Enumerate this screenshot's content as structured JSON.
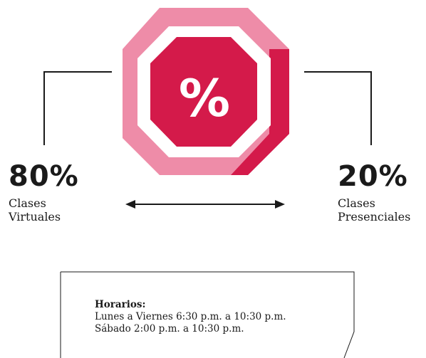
{
  "center_symbol": "%",
  "left": {
    "percent": "80%",
    "line1": "Clases",
    "line2": "Virtuales"
  },
  "right": {
    "percent": "20%",
    "line1": "Clases",
    "line2": "Presenciales"
  },
  "schedule": {
    "heading": "Horarios:",
    "line1": "Lunes a Viernes 6:30 p.m. a 10:30 p.m.",
    "line2": "Sábado 2:00 p.m. a 10:30 p.m."
  },
  "colors": {
    "accent": "#D41A4A",
    "accent_light": "#EE8CA8",
    "text": "#1a1a1a"
  }
}
